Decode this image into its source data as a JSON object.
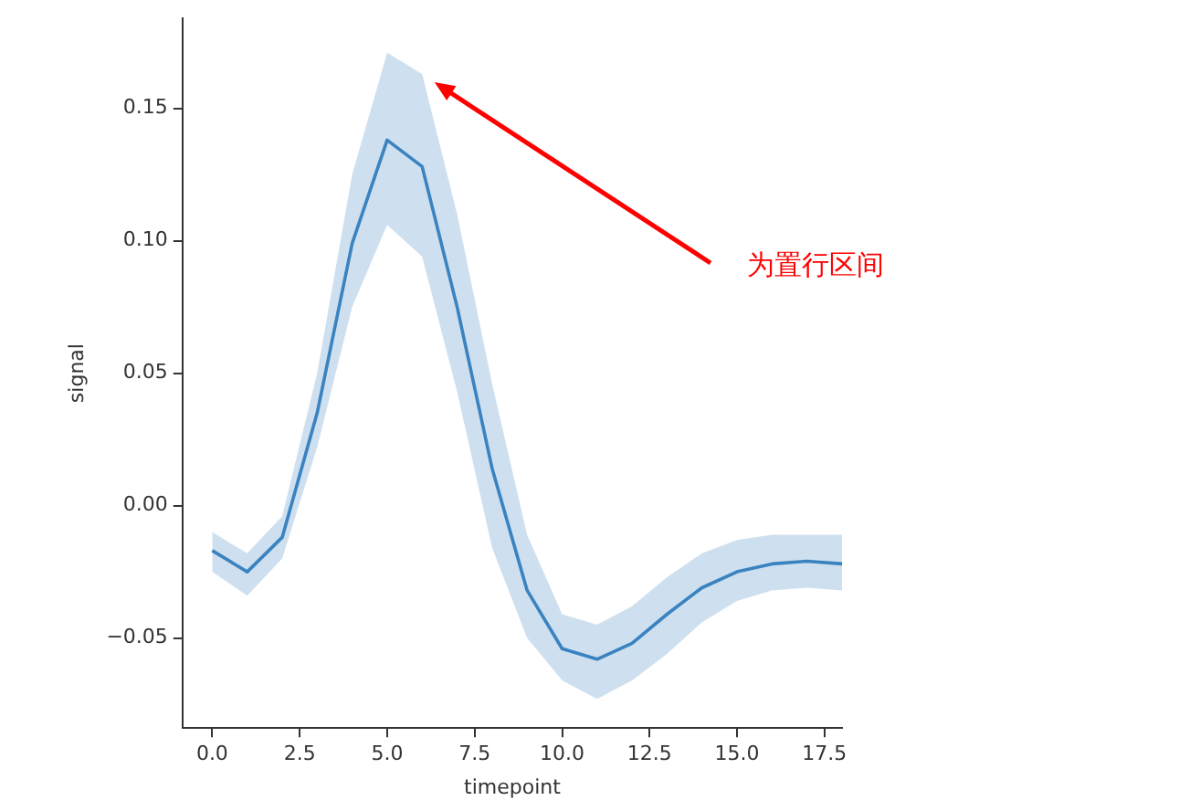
{
  "chart_data": {
    "type": "line",
    "xlabel": "timepoint",
    "ylabel": "signal",
    "x": [
      0,
      1,
      2,
      3,
      4,
      5,
      6,
      7,
      8,
      9,
      10,
      11,
      12,
      13,
      14,
      15,
      16,
      17,
      18
    ],
    "series": [
      {
        "color": "#3a83c0",
        "values": [
          -0.017,
          -0.025,
          -0.012,
          0.035,
          0.099,
          0.138,
          0.128,
          0.075,
          0.014,
          -0.032,
          -0.054,
          -0.058,
          -0.052,
          -0.041,
          -0.031,
          -0.025,
          -0.022,
          -0.021,
          -0.022
        ],
        "lower": [
          -0.025,
          -0.034,
          -0.02,
          0.022,
          0.075,
          0.106,
          0.094,
          0.043,
          -0.016,
          -0.05,
          -0.066,
          -0.073,
          -0.066,
          -0.056,
          -0.044,
          -0.036,
          -0.032,
          -0.031,
          -0.032
        ],
        "upper": [
          -0.01,
          -0.018,
          -0.004,
          0.05,
          0.125,
          0.171,
          0.163,
          0.11,
          0.046,
          -0.011,
          -0.041,
          -0.045,
          -0.038,
          -0.027,
          -0.018,
          -0.013,
          -0.011,
          -0.011,
          -0.011
        ]
      }
    ],
    "xlim": [
      -0.85,
      18
    ],
    "ylim": [
      -0.084,
      0.184
    ],
    "xticks": [
      {
        "value": 0,
        "label": "0.0"
      },
      {
        "value": 2.5,
        "label": "2.5"
      },
      {
        "value": 5,
        "label": "5.0"
      },
      {
        "value": 7.5,
        "label": "7.5"
      },
      {
        "value": 10,
        "label": "10.0"
      },
      {
        "value": 12.5,
        "label": "12.5"
      },
      {
        "value": 15,
        "label": "15.0"
      },
      {
        "value": 17.5,
        "label": "17.5"
      }
    ],
    "yticks": [
      {
        "value": -0.05,
        "label": "−0.05"
      },
      {
        "value": 0,
        "label": "0.00"
      },
      {
        "value": 0.05,
        "label": "0.05"
      },
      {
        "value": 0.1,
        "label": "0.10"
      },
      {
        "value": 0.15,
        "label": "0.15"
      }
    ],
    "grid": false,
    "legend": false,
    "marker": "none",
    "line_style": "solid",
    "annotations": [
      "为置行区间"
    ]
  }
}
